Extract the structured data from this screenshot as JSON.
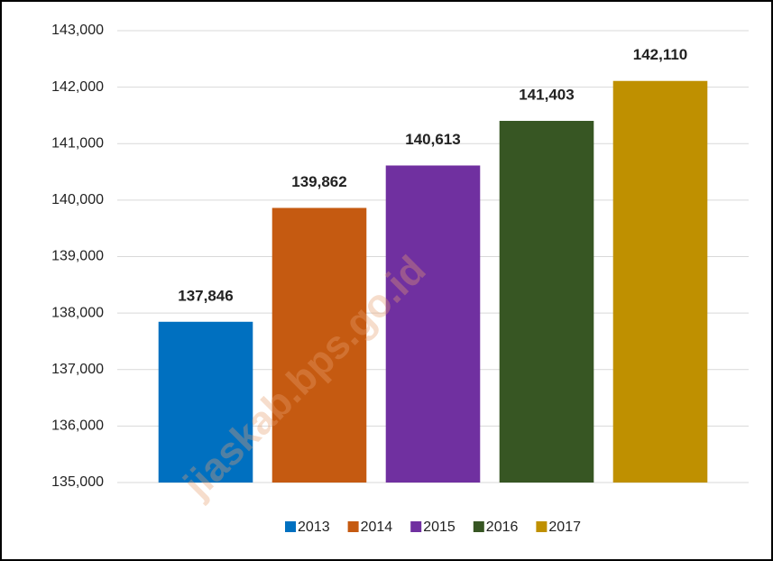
{
  "chart_data": {
    "type": "bar",
    "categories": [
      null
    ],
    "series": [
      {
        "name": "2013",
        "color": "#0070c0",
        "values": [
          137846
        ],
        "value_labels": [
          "137,846"
        ]
      },
      {
        "name": "2014",
        "color": "#c55a11",
        "values": [
          139862
        ],
        "value_labels": [
          "139,862"
        ]
      },
      {
        "name": "2015",
        "color": "#7030a0",
        "values": [
          140613
        ],
        "value_labels": [
          "140,613"
        ]
      },
      {
        "name": "2016",
        "color": "#375623",
        "values": [
          141403
        ],
        "value_labels": [
          "141,403"
        ]
      },
      {
        "name": "2017",
        "color": "#bf9000",
        "values": [
          142110
        ],
        "value_labels": [
          "142,110"
        ]
      }
    ],
    "ylim": [
      135000,
      143000
    ],
    "yticks": [
      {
        "value": 135000,
        "label": "135,000"
      },
      {
        "value": 136000,
        "label": "136,000"
      },
      {
        "value": 137000,
        "label": "137,000"
      },
      {
        "value": 138000,
        "label": "138,000"
      },
      {
        "value": 139000,
        "label": "139,000"
      },
      {
        "value": 140000,
        "label": "140,000"
      },
      {
        "value": 141000,
        "label": "141,000"
      },
      {
        "value": 142000,
        "label": "142,000"
      },
      {
        "value": 143000,
        "label": "143,000"
      }
    ],
    "grid": true,
    "legend": "bottom",
    "watermark": "jiaskab.bps.go.id"
  }
}
